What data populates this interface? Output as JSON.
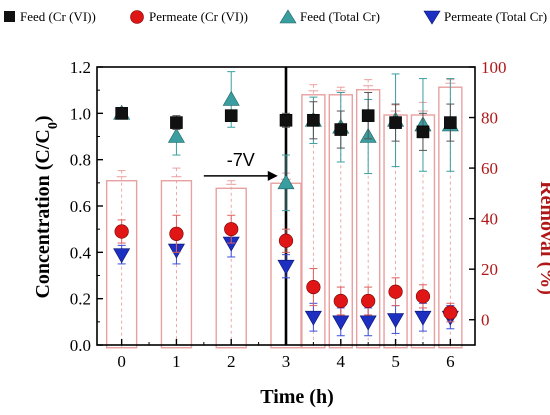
{
  "colors": {
    "feed_cr6": "#111111",
    "permeate_cr6": "#e01515",
    "feed_total": "#3a9ea0",
    "permeate_total": "#1c2fc0",
    "removal_bar": "#e8a0a0",
    "right_axis": "#b01818"
  },
  "chart_data": {
    "type": "scatter",
    "xlabel": "Time (h)",
    "ylabel": "Concentration (C/C",
    "ylabel_sub": "0",
    "ylabel_close": ")",
    "y2label": "Removal (%)",
    "xlim": [
      -0.45,
      6.45
    ],
    "ylim": [
      0.0,
      1.2
    ],
    "y2lim": [
      -10,
      100
    ],
    "xticks": [
      "0",
      "1",
      "2",
      "3",
      "4",
      "5",
      "6"
    ],
    "yticks": [
      "0.0",
      "0.2",
      "0.4",
      "0.6",
      "0.8",
      "1.0",
      "1.2"
    ],
    "y2ticks": [
      "0",
      "20",
      "40",
      "60",
      "80",
      "100"
    ],
    "annotation": {
      "text": "-7V",
      "x_start": 1.5,
      "x_end": 2.85,
      "y": 0.73
    },
    "switch_line_x": 3.0,
    "legend_position": "top",
    "series": [
      {
        "name": "Feed (Cr (VI))",
        "marker": "square",
        "x": [
          0,
          1,
          2,
          3,
          3.5,
          4,
          4.5,
          5,
          5.5,
          6
        ],
        "y": [
          1.0,
          0.96,
          0.99,
          0.97,
          0.97,
          0.93,
          0.99,
          0.96,
          0.92,
          0.96
        ],
        "err": [
          0.01,
          0.03,
          0.02,
          0.03,
          0.08,
          0.08,
          0.1,
          0.08,
          0.08,
          0.08
        ]
      },
      {
        "name": "Permeate (Cr (VI))",
        "marker": "circle",
        "x": [
          0,
          1,
          2,
          3,
          3.5,
          4,
          4.5,
          5,
          5.5,
          6
        ],
        "y": [
          0.49,
          0.48,
          0.5,
          0.45,
          0.25,
          0.19,
          0.19,
          0.23,
          0.21,
          0.14
        ],
        "err": [
          0.05,
          0.08,
          0.06,
          0.05,
          0.08,
          0.06,
          0.06,
          0.06,
          0.05,
          0.04
        ]
      },
      {
        "name": "Feed (Total Cr)",
        "marker": "triangle-up",
        "x": [
          0,
          1,
          2,
          3,
          3.5,
          4,
          4.5,
          5,
          5.5,
          6
        ],
        "y": [
          1.0,
          0.9,
          1.06,
          0.7,
          0.97,
          0.94,
          0.9,
          0.97,
          0.95,
          0.95
        ],
        "err": [
          0.01,
          0.08,
          0.12,
          0.12,
          0.1,
          0.15,
          0.16,
          0.2,
          0.2,
          0.2
        ]
      },
      {
        "name": "Permeate (Total Cr)",
        "marker": "triangle-down",
        "x": [
          0,
          1,
          2,
          3,
          3.5,
          4,
          4.5,
          5,
          5.5,
          6
        ],
        "y": [
          0.39,
          0.41,
          0.44,
          0.34,
          0.12,
          0.1,
          0.1,
          0.11,
          0.12,
          0.12
        ],
        "err": [
          0.04,
          0.06,
          0.06,
          0.05,
          0.06,
          0.06,
          0.06,
          0.06,
          0.06,
          0.05
        ]
      },
      {
        "name": "Removal (%)",
        "axis": "right",
        "type": "bar",
        "x": [
          0,
          1,
          2,
          3,
          3.5,
          4,
          4.5,
          5,
          5.5,
          6
        ],
        "values": [
          55,
          55,
          52,
          54,
          89,
          89,
          91,
          81,
          81,
          92
        ],
        "err": [
          4,
          5,
          3,
          4,
          4,
          3,
          4,
          4,
          5,
          3
        ]
      }
    ]
  }
}
